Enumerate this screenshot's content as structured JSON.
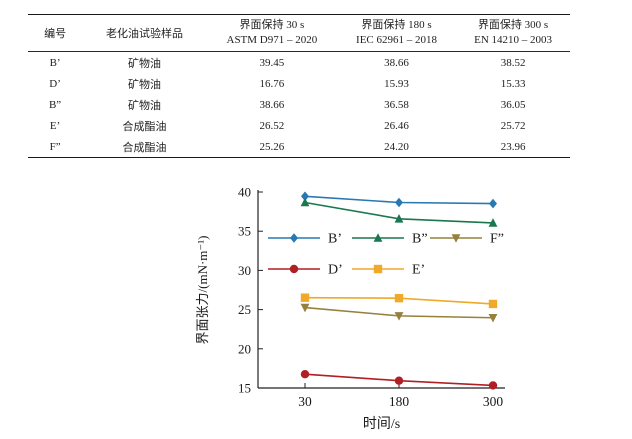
{
  "table": {
    "headers": {
      "id": "编号",
      "sample": "老化油试验样品",
      "t30": {
        "line1": "界面保持 30 s",
        "line2": "ASTM D971 – 2020"
      },
      "t180": {
        "line1": "界面保持 180 s",
        "line2": "IEC 62961 – 2018"
      },
      "t300": {
        "line1": "界面保持 300 s",
        "line2": "EN 14210 – 2003"
      }
    },
    "rows": [
      {
        "id": "B’",
        "sample": "矿物油",
        "v30": "39.45",
        "v180": "38.66",
        "v300": "38.52"
      },
      {
        "id": "D’",
        "sample": "矿物油",
        "v30": "16.76",
        "v180": "15.93",
        "v300": "15.33"
      },
      {
        "id": "B”",
        "sample": "矿物油",
        "v30": "38.66",
        "v180": "36.58",
        "v300": "36.05"
      },
      {
        "id": "E’",
        "sample": "合成酯油",
        "v30": "26.52",
        "v180": "26.46",
        "v300": "25.72"
      },
      {
        "id": "F”",
        "sample": "合成酯油",
        "v30": "25.26",
        "v180": "24.20",
        "v300": "23.96"
      }
    ]
  },
  "chart_data": {
    "type": "line",
    "x": [
      "30",
      "180",
      "300"
    ],
    "x_spacing": "categorical-equal",
    "xlabel": "时间/s",
    "ylabel": "界面张力/(mN·m⁻¹)",
    "ylim": [
      15,
      40
    ],
    "yticks": [
      15,
      20,
      25,
      30,
      35,
      40
    ],
    "grid": false,
    "axes_box": "left-bottom-only",
    "series": [
      {
        "name": "B’",
        "marker": "diamond",
        "color": "#2878b4",
        "values": [
          39.45,
          38.66,
          38.52
        ]
      },
      {
        "name": "B”",
        "marker": "triangle-up",
        "color": "#1b7750",
        "values": [
          38.66,
          36.58,
          36.05
        ]
      },
      {
        "name": "F”",
        "marker": "triangle-down",
        "color": "#96803c",
        "values": [
          25.26,
          24.2,
          23.96
        ]
      },
      {
        "name": "D’",
        "marker": "circle",
        "color": "#b01f24",
        "values": [
          16.76,
          15.93,
          15.33
        ]
      },
      {
        "name": "E’",
        "marker": "square",
        "color": "#f0a928",
        "values": [
          26.52,
          26.46,
          25.72
        ]
      }
    ],
    "legend_position": "inside-upper-left",
    "legend_rows": [
      [
        "B’",
        "B”",
        "F”"
      ],
      [
        "D’",
        "E’"
      ]
    ]
  }
}
